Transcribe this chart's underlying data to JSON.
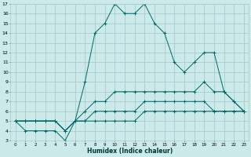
{
  "xlabel": "Humidex (Indice chaleur)",
  "bg_color": "#cceaea",
  "grid_color": "#aacccc",
  "line_color": "#006666",
  "xlim": [
    -0.5,
    23.5
  ],
  "ylim": [
    3,
    17
  ],
  "xticks": [
    0,
    1,
    2,
    3,
    4,
    5,
    6,
    7,
    8,
    9,
    10,
    11,
    12,
    13,
    14,
    15,
    16,
    17,
    18,
    19,
    20,
    21,
    22,
    23
  ],
  "yticks": [
    3,
    4,
    5,
    6,
    7,
    8,
    9,
    10,
    11,
    12,
    13,
    14,
    15,
    16,
    17
  ],
  "lines": [
    {
      "x": [
        0,
        1,
        2,
        3,
        4,
        5,
        6,
        7,
        8,
        9,
        10,
        11,
        12,
        13,
        14,
        15,
        16,
        17,
        18,
        19,
        20,
        21,
        22,
        23
      ],
      "y": [
        5,
        4,
        4,
        4,
        4,
        3,
        5,
        9,
        14,
        15,
        17,
        16,
        16,
        17,
        15,
        14,
        11,
        10,
        11,
        12,
        12,
        8,
        7,
        6
      ]
    },
    {
      "x": [
        0,
        1,
        2,
        3,
        4,
        5,
        6,
        7,
        8,
        9,
        10,
        11,
        12,
        13,
        14,
        15,
        16,
        17,
        18,
        19,
        20,
        21,
        22,
        23
      ],
      "y": [
        5,
        5,
        5,
        5,
        5,
        4,
        5,
        6,
        7,
        7,
        8,
        8,
        8,
        8,
        8,
        8,
        8,
        8,
        8,
        9,
        8,
        8,
        7,
        6
      ]
    },
    {
      "x": [
        0,
        1,
        2,
        3,
        4,
        5,
        6,
        7,
        8,
        9,
        10,
        11,
        12,
        13,
        14,
        15,
        16,
        17,
        18,
        19,
        20,
        21,
        22,
        23
      ],
      "y": [
        5,
        5,
        5,
        5,
        5,
        4,
        5,
        5,
        6,
        6,
        6,
        6,
        6,
        7,
        7,
        7,
        7,
        7,
        7,
        7,
        6,
        6,
        6,
        6
      ]
    },
    {
      "x": [
        0,
        1,
        2,
        3,
        4,
        5,
        6,
        7,
        8,
        9,
        10,
        11,
        12,
        13,
        14,
        15,
        16,
        17,
        18,
        19,
        20,
        21,
        22,
        23
      ],
      "y": [
        5,
        5,
        5,
        5,
        5,
        4,
        5,
        5,
        5,
        5,
        5,
        5,
        5,
        6,
        6,
        6,
        6,
        6,
        6,
        6,
        6,
        6,
        6,
        6
      ]
    }
  ]
}
